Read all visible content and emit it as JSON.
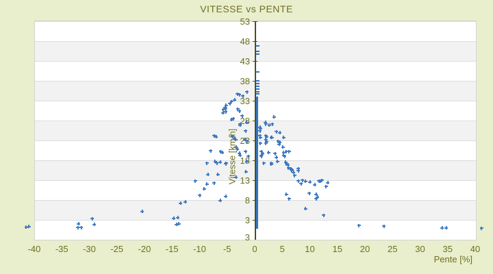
{
  "title": "VITESSE vs PENTE",
  "colors": {
    "page_background": "#e9eecd",
    "plot_stripe_light": "#ffffff",
    "plot_stripe_dark": "#f2f2f2",
    "gridline": "#dcdcdc",
    "plot_border": "#d4d4d4",
    "axis_line": "#4c520f",
    "label_text": "#6d7021",
    "marker": "#3a77c2"
  },
  "chart_data": {
    "type": "scatter",
    "title": "VITESSE vs PENTE",
    "xlabel": "Pente [%]",
    "ylabel": "Vitesse [km/h]",
    "xlim": [
      -40,
      40
    ],
    "ylim": [
      -2,
      53
    ],
    "x_ticks": [
      -40,
      -35,
      -30,
      -25,
      -20,
      -15,
      -10,
      -5,
      0,
      5,
      10,
      15,
      20,
      25,
      30,
      35,
      40
    ],
    "y_ticks": [
      53,
      48,
      43,
      38,
      33,
      28,
      23,
      18,
      13,
      8,
      3
    ],
    "y_axis_bottom_label": "3",
    "grid": "horizontal-bands",
    "legend": "none",
    "marker": "plus",
    "marker_color": "#3a77c2",
    "zero_slope_column": {
      "pente": 0,
      "v_min": 0.7,
      "v_max": 34,
      "note": "dense overlapping points at pente=0 drawn as a solid vertical strip over the y-axis"
    },
    "zero_slope_isolated_v": [
      46.8,
      45.4,
      44.7,
      40.2,
      38.0,
      37.3,
      36.6,
      35.9,
      35.2,
      34.7
    ],
    "points": [
      [
        -41.6,
        1.2
      ],
      [
        -41.1,
        1.3
      ],
      [
        -32.1,
        2.0
      ],
      [
        -32.2,
        1.1
      ],
      [
        -31.6,
        1.1
      ],
      [
        -29.6,
        3.3
      ],
      [
        -29.2,
        1.8
      ],
      [
        -20.5,
        5.1
      ],
      [
        -14.8,
        3.4
      ],
      [
        -14.1,
        3.6
      ],
      [
        -14.3,
        1.8
      ],
      [
        -13.9,
        2.0
      ],
      [
        -13.6,
        7.2
      ],
      [
        -12.7,
        7.5
      ],
      [
        -10.9,
        12.8
      ],
      [
        -10.1,
        9.2
      ],
      [
        -9.3,
        10.8
      ],
      [
        -8.8,
        12.0
      ],
      [
        -8.6,
        14.4
      ],
      [
        -8.8,
        17.3
      ],
      [
        -8.1,
        20.4
      ],
      [
        -7.5,
        12.3
      ],
      [
        -7.5,
        24.2
      ],
      [
        -7.3,
        17.7
      ],
      [
        -7.1,
        23.9
      ],
      [
        -7.0,
        17.3
      ],
      [
        -6.8,
        14.4
      ],
      [
        -6.4,
        17.5
      ],
      [
        -6.4,
        7.9
      ],
      [
        -6.3,
        20.2
      ],
      [
        -6.0,
        19.9
      ],
      [
        -5.9,
        29.9
      ],
      [
        -5.8,
        30.7
      ],
      [
        -5.5,
        31.3
      ],
      [
        -5.4,
        31.1
      ],
      [
        -5.4,
        30.2
      ],
      [
        -5.3,
        31.8
      ],
      [
        -5.4,
        17.1
      ],
      [
        -5.3,
        17.3
      ],
      [
        -5.4,
        8.9
      ],
      [
        -4.6,
        32.3
      ],
      [
        -4.3,
        32.8
      ],
      [
        -4.3,
        28.2
      ],
      [
        -4.1,
        24.0
      ],
      [
        -4.0,
        28.5
      ],
      [
        -3.8,
        33.2
      ],
      [
        -3.8,
        23.6
      ],
      [
        -3.6,
        23.2
      ],
      [
        -3.5,
        21.3
      ],
      [
        -3.5,
        13.7
      ],
      [
        -3.3,
        34.7
      ],
      [
        -3.3,
        20.8
      ],
      [
        -3.2,
        30.9
      ],
      [
        -2.9,
        34.5
      ],
      [
        -2.9,
        30.4
      ],
      [
        -2.9,
        19.8
      ],
      [
        -2.8,
        27.1
      ],
      [
        -2.8,
        26.8
      ],
      [
        -2.8,
        19.3
      ],
      [
        -2.4,
        29.2
      ],
      [
        -2.3,
        34.2
      ],
      [
        -1.9,
        23.2
      ],
      [
        -1.8,
        25.4
      ],
      [
        -1.8,
        20.2
      ],
      [
        -1.7,
        15.1
      ],
      [
        -1.6,
        27.5
      ],
      [
        -1.6,
        17.7
      ],
      [
        -1.5,
        35.2
      ],
      [
        -1.5,
        22.8
      ],
      [
        -1.3,
        19.0
      ],
      [
        0.8,
        26.3
      ],
      [
        0.8,
        25.4
      ],
      [
        0.8,
        24.2
      ],
      [
        0.9,
        25.9
      ],
      [
        0.9,
        23.7
      ],
      [
        0.9,
        22.3
      ],
      [
        1.1,
        20.2
      ],
      [
        1.1,
        19.3
      ],
      [
        1.1,
        19.0
      ],
      [
        1.3,
        19.7
      ],
      [
        1.5,
        17.3
      ],
      [
        1.8,
        27.5
      ],
      [
        1.9,
        27.1
      ],
      [
        1.9,
        24.2
      ],
      [
        1.9,
        23.2
      ],
      [
        1.9,
        22.3
      ],
      [
        2.0,
        23.9
      ],
      [
        2.0,
        22.7
      ],
      [
        2.4,
        19.9
      ],
      [
        2.5,
        26.8
      ],
      [
        2.9,
        23.7
      ],
      [
        3.0,
        23.7
      ],
      [
        2.9,
        17.3
      ],
      [
        2.9,
        17.0
      ],
      [
        3.1,
        27.1
      ],
      [
        3.4,
        28.9
      ],
      [
        3.6,
        19.7
      ],
      [
        3.8,
        25.2
      ],
      [
        3.8,
        18.7
      ],
      [
        4.0,
        17.7
      ],
      [
        4.1,
        22.8
      ],
      [
        4.4,
        24.9
      ],
      [
        4.4,
        22.5
      ],
      [
        4.3,
        22.0
      ],
      [
        5.0,
        21.3
      ],
      [
        5.1,
        23.7
      ],
      [
        5.1,
        19.9
      ],
      [
        5.1,
        19.3
      ],
      [
        5.3,
        19.0
      ],
      [
        5.5,
        17.5
      ],
      [
        5.6,
        20.2
      ],
      [
        5.6,
        17.1
      ],
      [
        5.6,
        9.4
      ],
      [
        5.9,
        16.8
      ],
      [
        6.0,
        16.1
      ],
      [
        6.1,
        20.2
      ],
      [
        6.1,
        8.3
      ],
      [
        6.3,
        15.9
      ],
      [
        6.5,
        15.8
      ],
      [
        6.6,
        15.6
      ],
      [
        6.6,
        15.4
      ],
      [
        6.9,
        14.9
      ],
      [
        7.1,
        14.2
      ],
      [
        7.8,
        15.9
      ],
      [
        7.8,
        15.4
      ],
      [
        7.8,
        12.8
      ],
      [
        8.3,
        12.1
      ],
      [
        8.5,
        13.0
      ],
      [
        9.1,
        12.7
      ],
      [
        9.1,
        5.8
      ],
      [
        9.8,
        9.7
      ],
      [
        9.9,
        12.5
      ],
      [
        10.8,
        11.8
      ],
      [
        11.0,
        9.4
      ],
      [
        11.0,
        8.3
      ],
      [
        11.3,
        8.7
      ],
      [
        11.5,
        12.8
      ],
      [
        11.8,
        12.7
      ],
      [
        12.1,
        13.0
      ],
      [
        12.4,
        4.2
      ],
      [
        12.8,
        11.4
      ],
      [
        13.1,
        12.4
      ],
      [
        18.8,
        1.6
      ],
      [
        23.3,
        1.4
      ],
      [
        33.9,
        1.0
      ],
      [
        34.6,
        1.0
      ],
      [
        41.0,
        0.9
      ]
    ]
  }
}
